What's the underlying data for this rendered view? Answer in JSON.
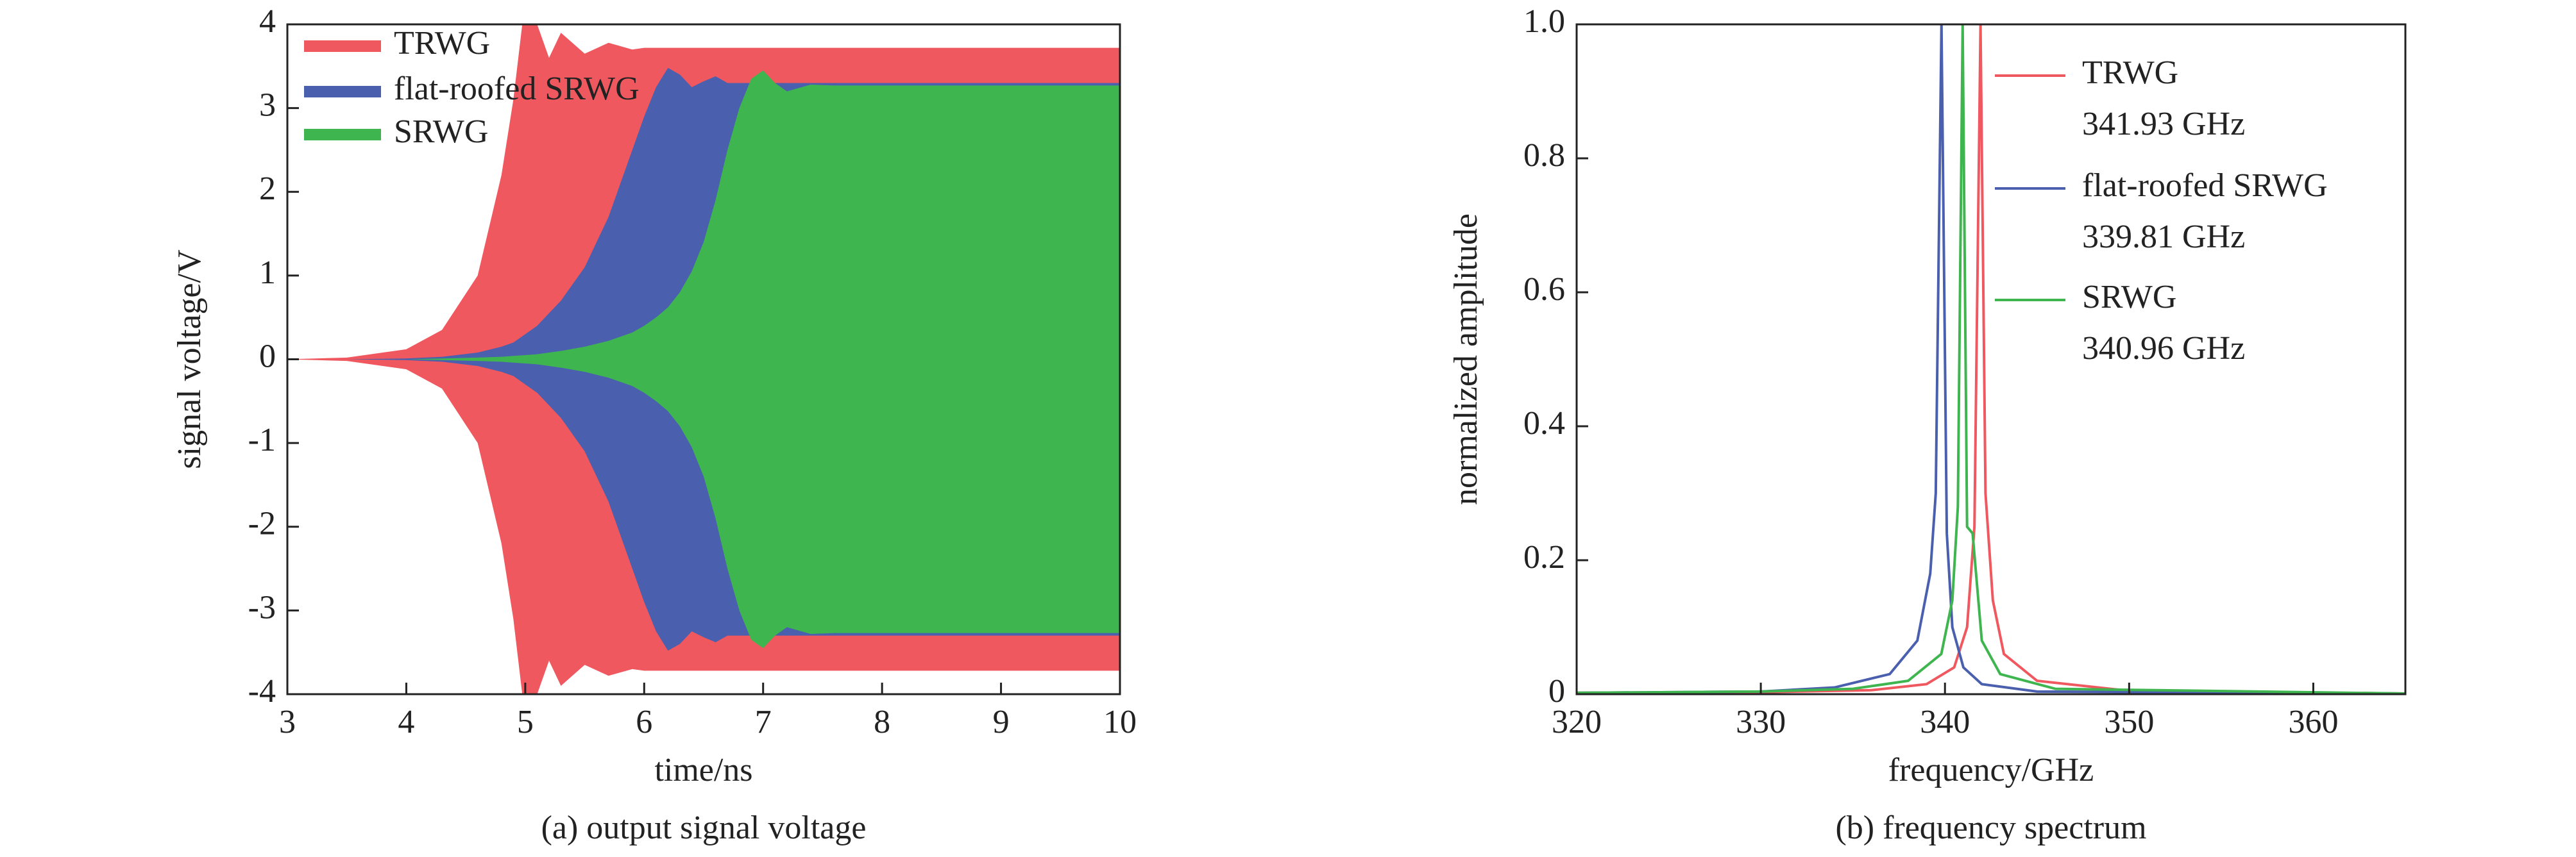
{
  "chart_data": [
    {
      "type": "area",
      "xlabel": "time/ns",
      "ylabel": "signal voltage/V",
      "caption": "(a) output signal voltage",
      "xlim": [
        3,
        10
      ],
      "xticks": [
        3,
        4,
        5,
        6,
        7,
        8,
        9,
        10
      ],
      "ylim": [
        -4,
        4
      ],
      "yticks": [
        -4,
        -3,
        -2,
        -1,
        0,
        1,
        2,
        3,
        4
      ],
      "x": [
        3,
        3.5,
        4,
        4.3,
        4.6,
        4.8,
        4.9,
        5,
        5.1,
        5.2,
        5.3,
        5.5,
        5.7,
        5.9,
        6,
        6.1,
        6.2,
        6.3,
        6.4,
        6.5,
        6.6,
        6.7,
        6.8,
        6.9,
        7,
        7.1,
        7.2,
        7.4,
        7.6,
        8,
        9,
        10
      ],
      "series": [
        {
          "name": "TRWG",
          "color": "#f0585f",
          "values": [
            0,
            0.02,
            0.12,
            0.35,
            1.0,
            2.2,
            3.1,
            4.3,
            4.0,
            3.6,
            3.9,
            3.65,
            3.78,
            3.7,
            3.72,
            3.72,
            3.72,
            3.72,
            3.72,
            3.72,
            3.72,
            3.72,
            3.72,
            3.72,
            3.72,
            3.72,
            3.72,
            3.72,
            3.72,
            3.72,
            3.72,
            3.72
          ],
          "lower": [
            0,
            -0.02,
            -0.12,
            -0.35,
            -1.0,
            -2.2,
            -3.1,
            -4.3,
            -4.0,
            -3.6,
            -3.9,
            -3.65,
            -3.78,
            -3.7,
            -3.72,
            -3.72,
            -3.72,
            -3.72,
            -3.72,
            -3.72,
            -3.72,
            -3.72,
            -3.72,
            -3.72,
            -3.72,
            -3.72,
            -3.72,
            -3.72,
            -3.72,
            -3.72,
            -3.72,
            -3.72
          ]
        },
        {
          "name": "flat-roofed SRWG",
          "color": "#4a5fad",
          "values": [
            0,
            0,
            0.01,
            0.03,
            0.08,
            0.15,
            0.2,
            0.3,
            0.4,
            0.55,
            0.7,
            1.1,
            1.7,
            2.5,
            2.9,
            3.25,
            3.48,
            3.4,
            3.25,
            3.32,
            3.38,
            3.3,
            3.3,
            3.3,
            3.3,
            3.3,
            3.3,
            3.3,
            3.3,
            3.3,
            3.3,
            3.3
          ],
          "lower": [
            0,
            0,
            -0.01,
            -0.03,
            -0.08,
            -0.15,
            -0.2,
            -0.3,
            -0.4,
            -0.55,
            -0.7,
            -1.1,
            -1.7,
            -2.5,
            -2.9,
            -3.25,
            -3.48,
            -3.4,
            -3.25,
            -3.32,
            -3.38,
            -3.3,
            -3.3,
            -3.3,
            -3.3,
            -3.3,
            -3.3,
            -3.3,
            -3.3,
            -3.3,
            -3.3,
            -3.3
          ]
        },
        {
          "name": "SRWG",
          "color": "#3fb54f",
          "values": [
            0,
            0,
            0,
            0.01,
            0.02,
            0.03,
            0.04,
            0.05,
            0.06,
            0.08,
            0.1,
            0.15,
            0.22,
            0.32,
            0.4,
            0.5,
            0.62,
            0.8,
            1.05,
            1.4,
            1.9,
            2.5,
            3.0,
            3.35,
            3.45,
            3.3,
            3.2,
            3.28,
            3.27,
            3.27,
            3.27,
            3.27
          ],
          "lower": [
            0,
            0,
            0,
            -0.01,
            -0.02,
            -0.03,
            -0.04,
            -0.05,
            -0.06,
            -0.08,
            -0.1,
            -0.15,
            -0.22,
            -0.32,
            -0.4,
            -0.5,
            -0.62,
            -0.8,
            -1.05,
            -1.4,
            -1.9,
            -2.5,
            -3.0,
            -3.35,
            -3.45,
            -3.3,
            -3.2,
            -3.28,
            -3.27,
            -3.27,
            -3.27,
            -3.27
          ]
        }
      ]
    },
    {
      "type": "line",
      "xlabel": "frequency/GHz",
      "ylabel": "normalized amplitude",
      "caption": "(b) frequency spectrum",
      "xlim": [
        320,
        365
      ],
      "xticks": [
        320,
        330,
        340,
        350,
        360
      ],
      "ylim": [
        0,
        1
      ],
      "yticks": [
        0,
        0.2,
        0.4,
        0.6,
        0.8,
        {
          "value": 1,
          "label": "1.0"
        }
      ],
      "series": [
        {
          "name": "TRWG",
          "peak_label": "341.93 GHz",
          "color": "#f0585f",
          "x": [
            320,
            330,
            336,
            339,
            340.5,
            341.2,
            341.6,
            341.93,
            342.2,
            342.6,
            343.2,
            345,
            350,
            365
          ],
          "values": [
            0.002,
            0.003,
            0.006,
            0.015,
            0.04,
            0.1,
            0.25,
            1,
            0.3,
            0.14,
            0.06,
            0.02,
            0.005,
            0.001
          ]
        },
        {
          "name": "flat-roofed SRWG",
          "peak_label": "339.81 GHz",
          "color": "#4a5fad",
          "x": [
            320,
            330,
            334,
            337,
            338.5,
            339.2,
            339.5,
            339.81,
            340.1,
            340.4,
            341,
            342,
            345,
            365
          ],
          "values": [
            0.002,
            0.004,
            0.01,
            0.03,
            0.08,
            0.18,
            0.3,
            1,
            0.24,
            0.1,
            0.04,
            0.015,
            0.004,
            0.001
          ]
        },
        {
          "name": "SRWG",
          "peak_label": "340.96 GHz",
          "color": "#3fb54f",
          "x": [
            320,
            330,
            335,
            338,
            339.8,
            340.4,
            340.7,
            340.96,
            341.2,
            341.5,
            342,
            343,
            346,
            365
          ],
          "values": [
            0.002,
            0.004,
            0.008,
            0.02,
            0.06,
            0.14,
            0.28,
            1,
            0.25,
            0.24,
            0.08,
            0.03,
            0.008,
            0.001
          ]
        }
      ]
    }
  ]
}
